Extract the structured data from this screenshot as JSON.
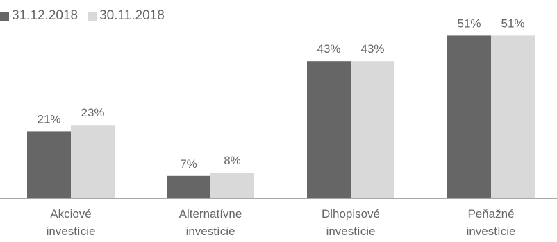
{
  "chart_data": {
    "type": "bar",
    "categories": [
      [
        "Akciové",
        "investície"
      ],
      [
        "Alternatívne",
        "investície"
      ],
      [
        "Dlhopisové",
        "investície"
      ],
      [
        "Peňažné",
        "investície"
      ]
    ],
    "series": [
      {
        "name": "31.12.2018",
        "values": [
          21,
          7,
          43,
          51
        ],
        "labels": [
          "21%",
          "7%",
          "43%",
          "51%"
        ],
        "color": "#666666"
      },
      {
        "name": "30.11.2018",
        "values": [
          23,
          8,
          43,
          51
        ],
        "labels": [
          "23%",
          "8%",
          "43%",
          "51%"
        ],
        "color": "#d9d9d9"
      }
    ],
    "ylim": [
      0,
      55
    ],
    "grid": false,
    "legend_position": "top-left",
    "value_label_color": "#666666",
    "axis_color": "#8c8c8c"
  }
}
